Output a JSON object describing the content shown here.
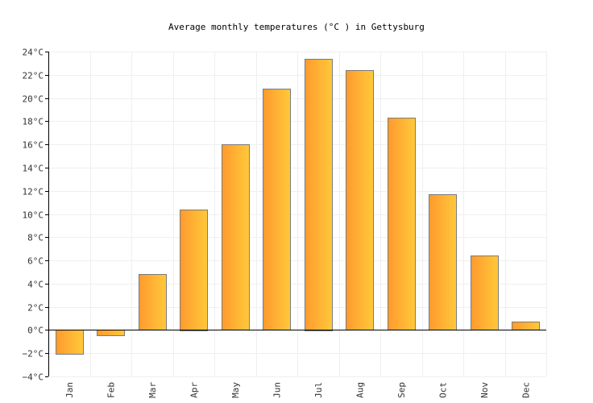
{
  "chart_data": {
    "type": "bar",
    "title": "Average monthly temperatures (°C ) in Gettysburg",
    "xlabel": "",
    "ylabel": "",
    "categories": [
      "Jan",
      "Feb",
      "Mar",
      "Apr",
      "May",
      "Jun",
      "Jul",
      "Aug",
      "Sep",
      "Oct",
      "Nov",
      "Dec"
    ],
    "values": [
      -2.1,
      -0.5,
      4.8,
      10.4,
      16.0,
      20.8,
      23.4,
      22.4,
      18.3,
      11.7,
      6.4,
      0.7
    ],
    "ylim": [
      -4,
      24
    ],
    "yticks": [
      -4,
      -2,
      0,
      2,
      4,
      6,
      8,
      10,
      12,
      14,
      16,
      18,
      20,
      22,
      24
    ],
    "ytick_labels": [
      "−4°C",
      "−2°C",
      "0°C",
      "2°C",
      "4°C",
      "6°C",
      "8°C",
      "10°C",
      "12°C",
      "14°C",
      "16°C",
      "18°C",
      "20°C",
      "22°C",
      "24°C"
    ],
    "grid": true,
    "legend": "none",
    "colors": {
      "bar_left": "#ff9a2e",
      "bar_right": "#ffc93a",
      "bar_border": "#7a7a7a"
    }
  }
}
